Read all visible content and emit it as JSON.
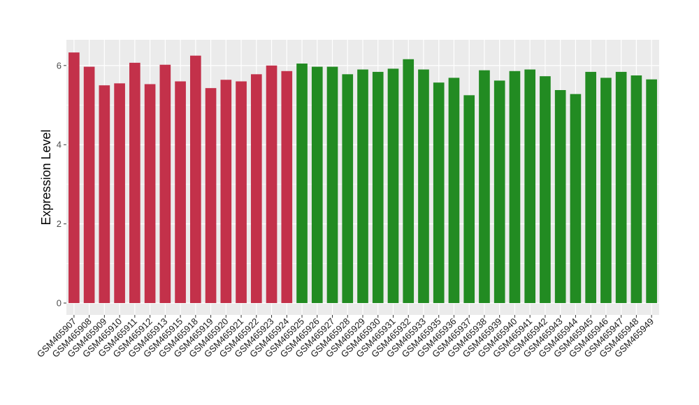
{
  "chart_data": {
    "type": "bar",
    "ylabel": "Expression Level",
    "xlabel": "",
    "ylim": [
      -0.3,
      6.65
    ],
    "yticks": [
      0,
      2,
      4,
      6
    ],
    "grid": true,
    "colors": {
      "group1": "#c3314a",
      "group2": "#228b22",
      "panel": "#ebebeb",
      "grid": "#ffffff"
    },
    "categories": [
      "GSM465907",
      "GSM465908",
      "GSM465909",
      "GSM465910",
      "GSM465911",
      "GSM465912",
      "GSM465913",
      "GSM465915",
      "GSM465918",
      "GSM465919",
      "GSM465920",
      "GSM465921",
      "GSM465922",
      "GSM465923",
      "GSM465924",
      "GSM465925",
      "GSM465926",
      "GSM465927",
      "GSM465928",
      "GSM465929",
      "GSM465930",
      "GSM465931",
      "GSM465932",
      "GSM465933",
      "GSM465935",
      "GSM465936",
      "GSM465937",
      "GSM465938",
      "GSM465939",
      "GSM465940",
      "GSM465941",
      "GSM465942",
      "GSM465943",
      "GSM465944",
      "GSM465945",
      "GSM465946",
      "GSM465947",
      "GSM465948",
      "GSM465949"
    ],
    "values": [
      6.33,
      5.97,
      5.5,
      5.55,
      6.07,
      5.53,
      6.02,
      5.6,
      6.25,
      5.43,
      5.64,
      5.6,
      5.78,
      6.0,
      5.86,
      6.05,
      5.97,
      5.97,
      5.78,
      5.9,
      5.84,
      5.92,
      6.16,
      5.9,
      5.57,
      5.69,
      5.25,
      5.88,
      5.62,
      5.86,
      5.9,
      5.73,
      5.38,
      5.28,
      5.84,
      5.69,
      5.84,
      5.75,
      5.65
    ],
    "groups": [
      1,
      1,
      1,
      1,
      1,
      1,
      1,
      1,
      1,
      1,
      1,
      1,
      1,
      1,
      1,
      2,
      2,
      2,
      2,
      2,
      2,
      2,
      2,
      2,
      2,
      2,
      2,
      2,
      2,
      2,
      2,
      2,
      2,
      2,
      2,
      2,
      2,
      2,
      2
    ]
  }
}
